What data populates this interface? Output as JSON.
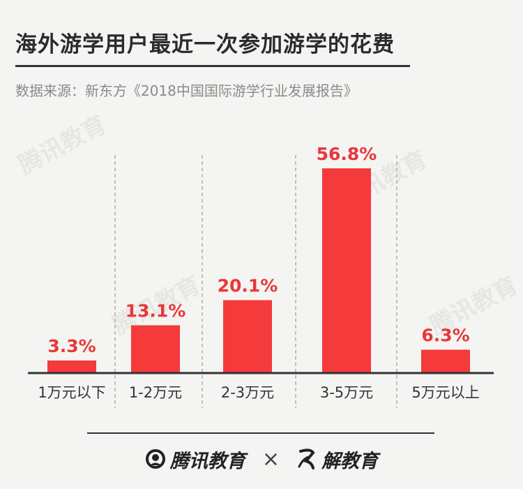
{
  "title": "海外游学用户最近一次参加游学的花费",
  "source": "数据来源：新东方《2018中国国际游学行业发展报告》",
  "watermark_text": "腾讯教育",
  "footer": {
    "logo1": "腾讯教育",
    "separator": "×",
    "logo2": "解教育"
  },
  "colors": {
    "bar": "#f43a3b",
    "label": "#e8373a",
    "axis": "#333333",
    "divider": "#9a9a9a"
  },
  "chart_data": {
    "type": "bar",
    "categories": [
      "1万元以下",
      "1-2万元",
      "2-3万元",
      "3-5万元",
      "5万元以上"
    ],
    "values": [
      3.3,
      13.1,
      20.1,
      56.8,
      6.3
    ],
    "value_labels": [
      "3.3%",
      "13.1%",
      "20.1%",
      "56.8%",
      "6.3%"
    ],
    "title": "海外游学用户最近一次参加游学的花费",
    "xlabel": "",
    "ylabel": "",
    "ylim": [
      0,
      60
    ],
    "grid": false,
    "legend": "none",
    "category_dividers": "dashed"
  }
}
